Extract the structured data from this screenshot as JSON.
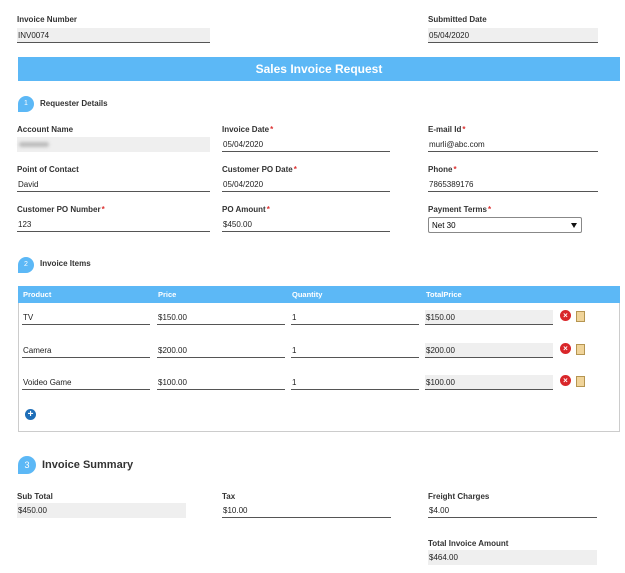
{
  "header": {
    "fields": [
      {
        "label": "Invoice Number",
        "value": "INV0074"
      },
      {
        "label": "Submitted Date",
        "value": "05/04/2020"
      }
    ]
  },
  "title": "Sales Invoice Request",
  "sections": [
    {
      "number": "1",
      "title": "Requester Details"
    },
    {
      "number": "2",
      "title": "Invoice Items"
    },
    {
      "number": "3",
      "title": "Invoice Summary"
    }
  ],
  "requester": {
    "fields": [
      {
        "label": "Account Name"
      },
      {
        "label": "Invoice Date",
        "required": "*",
        "value": "05/04/2020"
      },
      {
        "label": "E-mail Id",
        "required": "*",
        "value": "murli@abc.com"
      },
      {
        "label": "Point of Contact",
        "value": "David"
      },
      {
        "label": "Customer PO Date",
        "required": "*",
        "value": "05/04/2020"
      },
      {
        "label": "Phone",
        "required": "*",
        "value": "7865389176"
      },
      {
        "label": "Customer PO Number",
        "required": "*",
        "value": "123"
      },
      {
        "label": "PO Amount",
        "required": "*",
        "value": "$450.00"
      },
      {
        "label": "Payment Terms",
        "required": "*",
        "value": "Net 30"
      }
    ]
  },
  "items": {
    "headers": [
      "Product",
      "Price",
      "Quantity",
      "TotalPrice"
    ],
    "rows": [
      [
        "TV",
        "$150.00",
        "1",
        "$150.00"
      ],
      [
        "Camera",
        "$200.00",
        "1",
        "$200.00"
      ],
      [
        "Voideo Game",
        "$100.00",
        "1",
        "$100.00"
      ]
    ]
  },
  "summary": {
    "fields": [
      {
        "label": "Sub Total",
        "value": "$450.00"
      },
      {
        "label": "Tax",
        "value": "$10.00"
      },
      {
        "label": "Freight Charges",
        "value": "$4.00"
      },
      {
        "label": "Total Invoice Amount",
        "value": "$464.00"
      }
    ]
  }
}
